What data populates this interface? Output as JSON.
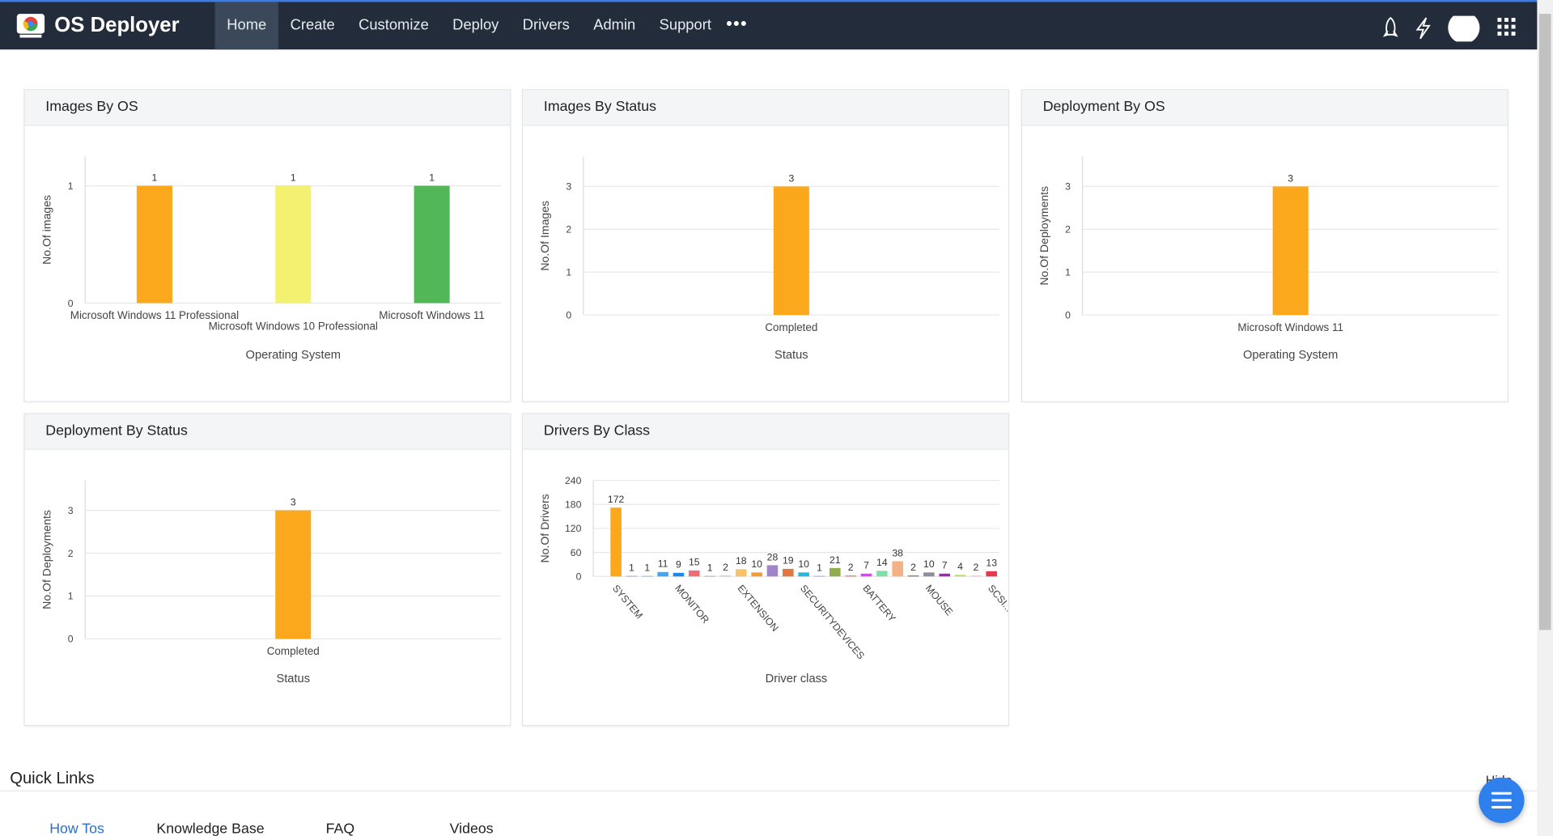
{
  "header": {
    "app_name": "OS Deployer",
    "nav": [
      "Home",
      "Create",
      "Customize",
      "Deploy",
      "Drivers",
      "Admin",
      "Support"
    ]
  },
  "chart_data": [
    {
      "type": "bar",
      "title": "Images By OS",
      "x_label": "Operating System",
      "y_label": "No.Of images",
      "categories": [
        "Microsoft Windows 11 Professional",
        "Microsoft Windows 10 Professional",
        "Microsoft Windows 11"
      ],
      "values": [
        1,
        1,
        1
      ],
      "colors": [
        "#fca81c",
        "#f4f171",
        "#52b857"
      ],
      "ylim": [
        0,
        1.25
      ],
      "yticks": [
        0,
        1
      ],
      "grid": true
    },
    {
      "type": "bar",
      "title": "Images By Status",
      "x_label": "Status",
      "y_label": "No.Of Images",
      "categories": [
        "Completed"
      ],
      "values": [
        3
      ],
      "color": "#fca81c",
      "ylim": [
        0,
        3.7
      ],
      "yticks": [
        0,
        1,
        2,
        3
      ],
      "grid": true
    },
    {
      "type": "bar",
      "title": "Deployment By OS",
      "x_label": "Operating System",
      "y_label": "No.Of Deployments",
      "categories": [
        "Microsoft Windows 11"
      ],
      "values": [
        3
      ],
      "color": "#fca81c",
      "ylim": [
        0,
        3.7
      ],
      "yticks": [
        0,
        1,
        2,
        3
      ],
      "grid": true
    },
    {
      "type": "bar",
      "title": "Deployment By Status",
      "x_label": "Status",
      "y_label": "No.Of Deployments",
      "categories": [
        "Completed"
      ],
      "values": [
        3
      ],
      "color": "#fca81c",
      "ylim": [
        0,
        3.7
      ],
      "yticks": [
        0,
        1,
        2,
        3
      ],
      "grid": true
    },
    {
      "type": "bar",
      "title": "Drivers By Class",
      "x_label": "Driver class",
      "y_label": "No.Of Drivers",
      "categories": [
        "SYSTEM",
        null,
        null,
        null,
        "MONITOR",
        null,
        null,
        null,
        "EXTENSION",
        null,
        null,
        null,
        "SECURITYDEVICES",
        null,
        null,
        null,
        "BATTERY",
        null,
        null,
        null,
        "MOUSE",
        null,
        null,
        null,
        "SCSI..."
      ],
      "values": [
        172,
        1,
        1,
        11,
        9,
        15,
        1,
        2,
        18,
        10,
        28,
        19,
        10,
        1,
        21,
        2,
        7,
        14,
        38,
        2,
        10,
        7,
        4,
        2,
        13
      ],
      "colors": [
        "#fca81c",
        "#7e57c2",
        "#26a69a",
        "#42a5f5",
        "#1e88e5",
        "#ef6c75",
        "#8d6e63",
        "#bdbdbd",
        "#f6c36b",
        "#f29c38",
        "#9e86c9",
        "#e0783f",
        "#29b6d9",
        "#5c6bc0",
        "#8fac4f",
        "#ef5350",
        "#e040fb",
        "#7ee0a7",
        "#f4b183",
        "#6d4c41",
        "#8e8ea0",
        "#9c27b0",
        "#b5e06b",
        "#ffb3c6",
        "#e53950"
      ],
      "ylim": [
        0,
        240
      ],
      "yticks": [
        0,
        60,
        120,
        180,
        240
      ],
      "grid": true
    }
  ],
  "quick_links": {
    "title": "Quick Links",
    "toggle": "Hide",
    "tabs": [
      "How Tos",
      "Knowledge Base",
      "FAQ",
      "Videos"
    ]
  }
}
